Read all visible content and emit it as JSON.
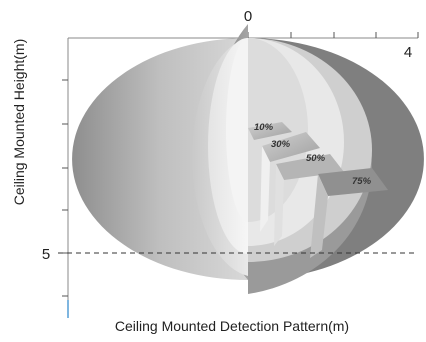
{
  "diagram": {
    "x_axis_labels": {
      "origin": "0",
      "max": "4"
    },
    "y_axis_labels": {
      "five": "5"
    },
    "x_axis_title": "Ceiling Mounted Detection Pattern(m)",
    "y_axis_title": "Ceiling Mounted Height(m)",
    "zones": [
      {
        "label": "10%"
      },
      {
        "label": "30%"
      },
      {
        "label": "50%"
      },
      {
        "label": "75%"
      }
    ]
  }
}
